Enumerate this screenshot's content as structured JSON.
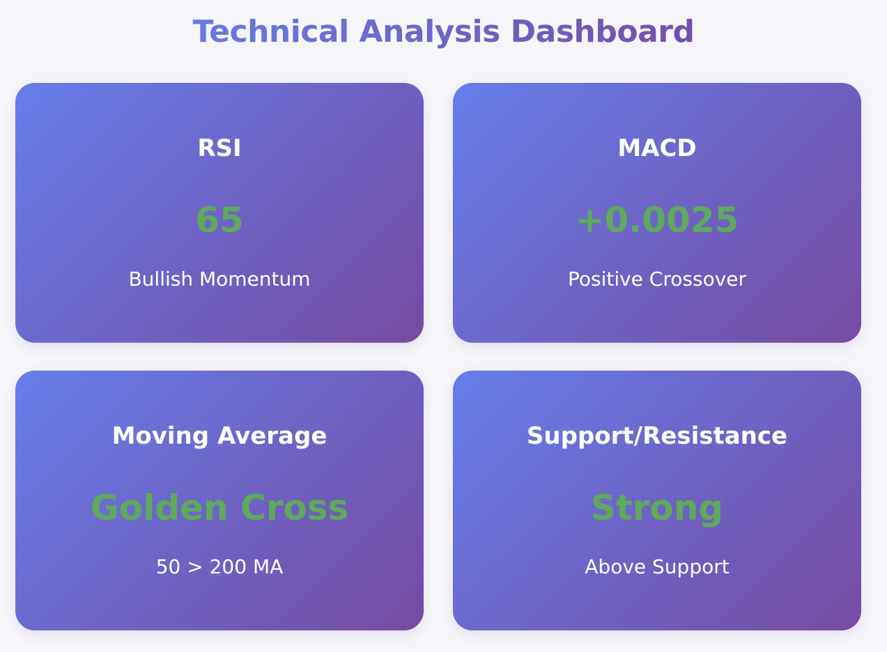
{
  "page": {
    "title": "Technical Analysis Dashboard"
  },
  "colors": {
    "page_background": "#f6f5fa",
    "card_gradient_start": "#667eea",
    "card_gradient_end": "#764ba2",
    "title_gradient_start": "#667eea",
    "title_gradient_end": "#764ba2",
    "value_green": "#5faa5a",
    "card_text": "#ffffff"
  },
  "cards": [
    {
      "title": "RSI",
      "value": "65",
      "subtitle": "Bullish Momentum"
    },
    {
      "title": "MACD",
      "value": "+0.0025",
      "subtitle": "Positive Crossover"
    },
    {
      "title": "Moving Average",
      "value": "Golden Cross",
      "subtitle": "50 > 200 MA"
    },
    {
      "title": "Support/Resistance",
      "value": "Strong",
      "subtitle": "Above Support"
    }
  ]
}
